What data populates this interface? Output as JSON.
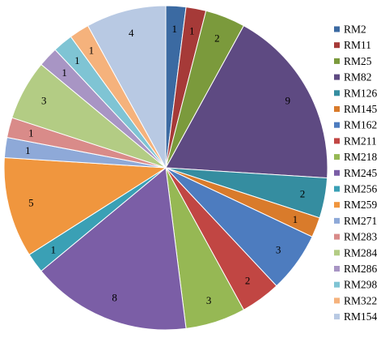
{
  "chart_data": {
    "type": "pie",
    "title": "",
    "categories": [
      "RM2",
      "RM11",
      "RM25",
      "RM82",
      "RM126",
      "RM145",
      "RM162",
      "RM211",
      "RM218",
      "RM245",
      "RM256",
      "RM259",
      "RM271",
      "RM283",
      "RM284",
      "RM286",
      "RM298",
      "RM322",
      "RM154"
    ],
    "slices": [
      {
        "label": "RM2",
        "value": 1,
        "color": "#3b6aa2"
      },
      {
        "label": "RM11",
        "value": 1,
        "color": "#a63a38"
      },
      {
        "label": "RM25",
        "value": 2,
        "color": "#7b9a3c"
      },
      {
        "label": "RM82",
        "value": 9,
        "color": "#5e4a82"
      },
      {
        "label": "RM126",
        "value": 2,
        "color": "#358da0"
      },
      {
        "label": "RM145",
        "value": 1,
        "color": "#d97b2b"
      },
      {
        "label": "RM162",
        "value": 3,
        "color": "#4d7cbf"
      },
      {
        "label": "RM211",
        "value": 2,
        "color": "#c14643"
      },
      {
        "label": "RM218",
        "value": 3,
        "color": "#96b854"
      },
      {
        "label": "RM245",
        "value": 8,
        "color": "#7b5ea6"
      },
      {
        "label": "RM256",
        "value": 1,
        "color": "#3aa0b5"
      },
      {
        "label": "RM259",
        "value": 5,
        "color": "#f0963e"
      },
      {
        "label": "RM271",
        "value": 1,
        "color": "#8ea9d8"
      },
      {
        "label": "RM283",
        "value": 1,
        "color": "#d98b89"
      },
      {
        "label": "RM284",
        "value": 3,
        "color": "#b3cc84"
      },
      {
        "label": "RM286",
        "value": 1,
        "color": "#a895c4"
      },
      {
        "label": "RM298",
        "value": 1,
        "color": "#7fc4d4"
      },
      {
        "label": "RM322",
        "value": 1,
        "color": "#f5b27c"
      },
      {
        "label": "RM154",
        "value": 4,
        "color": "#b8c9e3"
      }
    ],
    "start_angle": "12 o'clock",
    "direction": "clockwise",
    "data_labels": "value",
    "legend": {
      "position": "right"
    }
  }
}
